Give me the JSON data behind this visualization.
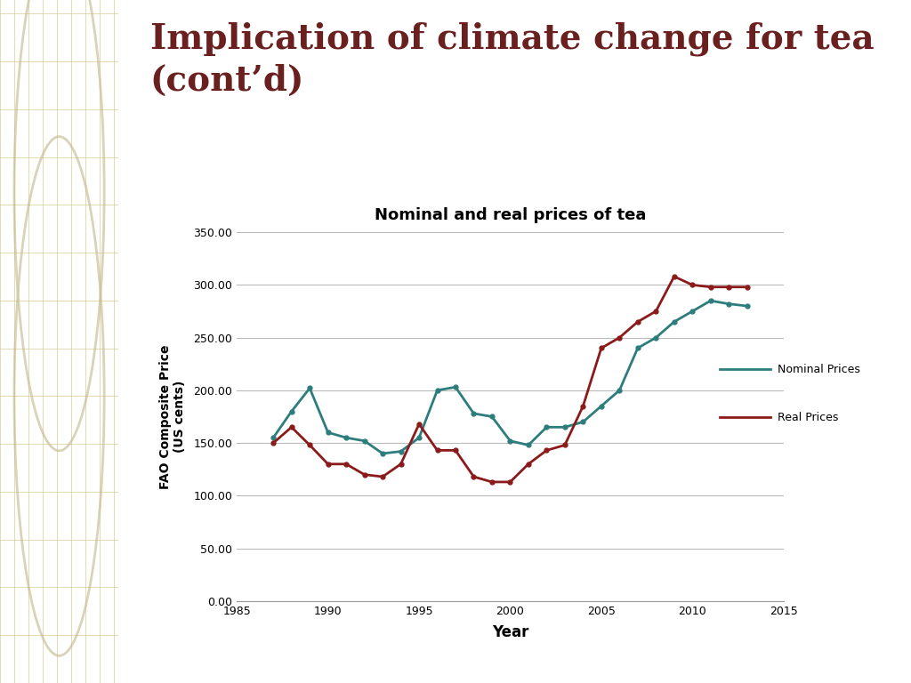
{
  "title_main": "Implication of climate change for tea\n(cont’d)",
  "chart_title": "Nominal and real prices of tea",
  "xlabel": "Year",
  "ylabel": "FAO Composite Price\n(US cents)",
  "nominal_years": [
    1987,
    1988,
    1989,
    1990,
    1991,
    1992,
    1993,
    1994,
    1995,
    1996,
    1997,
    1998,
    1999,
    2000,
    2001,
    2002,
    2003,
    2004,
    2005,
    2006,
    2007,
    2008,
    2009,
    2010,
    2011,
    2012,
    2013
  ],
  "nominal_values": [
    155,
    180,
    202,
    160,
    155,
    152,
    140,
    142,
    155,
    200,
    203,
    178,
    175,
    152,
    148,
    165,
    165,
    170,
    185,
    200,
    240,
    250,
    265,
    275,
    285,
    282,
    280
  ],
  "real_years": [
    1987,
    1988,
    1989,
    1990,
    1991,
    1992,
    1993,
    1994,
    1995,
    1996,
    1997,
    1998,
    1999,
    2000,
    2001,
    2002,
    2003,
    2004,
    2005,
    2006,
    2007,
    2008,
    2009,
    2010,
    2011,
    2012,
    2013
  ],
  "real_values": [
    150,
    165,
    148,
    130,
    130,
    120,
    118,
    130,
    168,
    143,
    143,
    118,
    113,
    113,
    130,
    143,
    148,
    185,
    240,
    250,
    265,
    275,
    308,
    300,
    298,
    298,
    298
  ],
  "nominal_color": "#2e7d7d",
  "real_color": "#8b1a1a",
  "ylim": [
    0,
    350
  ],
  "yticks": [
    0,
    50,
    100,
    150,
    200,
    250,
    300,
    350
  ],
  "xlim": [
    1985,
    2015
  ],
  "xticks": [
    1985,
    1990,
    1995,
    2000,
    2005,
    2010,
    2015
  ],
  "background_color": "#ffffff",
  "title_color": "#6b2020",
  "slide_bg": "#ede8d5",
  "grid_color": "#c8b870",
  "circle_color": "#d0c8a8"
}
